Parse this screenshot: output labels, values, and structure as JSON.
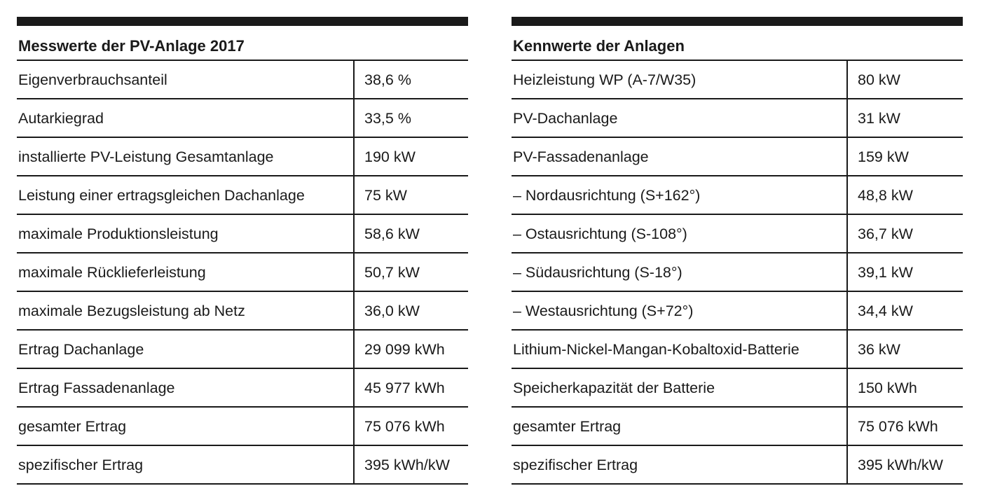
{
  "left_table": {
    "title": "Messwerte der PV-Anlage 2017",
    "rows": [
      {
        "label": "Eigenverbrauchsanteil",
        "value": "38,6 %"
      },
      {
        "label": "Autarkiegrad",
        "value": "33,5 %"
      },
      {
        "label": "installierte PV-Leistung Gesamtanlage",
        "value": "190 kW"
      },
      {
        "label": "Leistung einer ertragsgleichen Dachanlage",
        "value": "75 kW"
      },
      {
        "label": "maximale Produktionsleistung",
        "value": "58,6 kW"
      },
      {
        "label": "maximale Rücklieferleistung",
        "value": "50,7 kW"
      },
      {
        "label": "maximale Bezugsleistung ab Netz",
        "value": "36,0 kW"
      },
      {
        "label": "Ertrag Dachanlage",
        "value": " 29 099 kWh"
      },
      {
        "label": "Ertrag Fassadenanlage",
        "value": "45 977 kWh"
      },
      {
        "label": "gesamter Ertrag",
        "value": "75 076 kWh"
      },
      {
        "label": "spezifischer Ertrag",
        "value": "395 kWh/kW"
      }
    ]
  },
  "right_table": {
    "title": "Kennwerte der Anlagen",
    "rows": [
      {
        "label": "Heizleistung WP (A-7/W35)",
        "value": "80 kW"
      },
      {
        "label": "PV-Dachanlage",
        "value": "31 kW"
      },
      {
        "label": "PV-Fassadenanlage",
        "value": "159 kW"
      },
      {
        "label": "– Nordausrichtung (S+162°)",
        "value": "48,8 kW"
      },
      {
        "label": "– Ostausrichtung (S-108°)",
        "value": "36,7 kW"
      },
      {
        "label": "– Südausrichtung (S-18°)",
        "value": "39,1 kW"
      },
      {
        "label": "– Westausrichtung (S+72°)",
        "value": "34,4 kW"
      },
      {
        "label": "Lithium-Nickel-Mangan-Kobaltoxid-Batterie",
        "value": "36 kW"
      },
      {
        "label": "Speicherkapazität der Batterie",
        "value": "150 kWh"
      },
      {
        "label": "gesamter Ertrag",
        "value": "75 076 kWh"
      },
      {
        "label": "spezifischer Ertrag",
        "value": "395 kWh/kW"
      }
    ]
  }
}
